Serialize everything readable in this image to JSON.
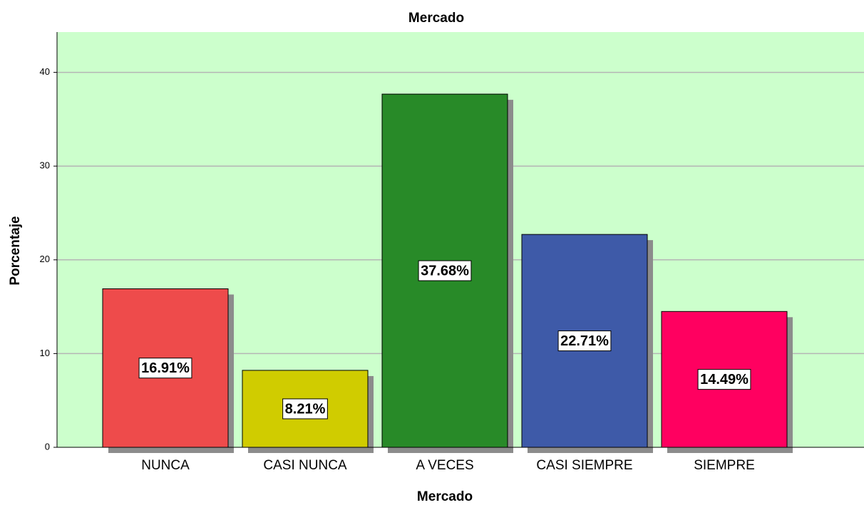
{
  "chart_data": {
    "type": "bar",
    "title": "Mercado",
    "x_label": "Mercado",
    "y_label": "Porcentaje",
    "categories": [
      "NUNCA",
      "CASI NUNCA",
      "A VECES",
      "CASI SIEMPRE",
      "SIEMPRE"
    ],
    "values": [
      16.91,
      8.21,
      37.68,
      22.71,
      14.49
    ],
    "value_labels": [
      "16.91%",
      "8.21%",
      "37.68%",
      "22.71%",
      "14.49%"
    ],
    "colors": [
      "#ee4b4b",
      "#d0cc00",
      "#288a28",
      "#3e5aa8",
      "#ff0060"
    ],
    "ylim": [
      0,
      44.3
    ],
    "yticks": [
      0,
      10,
      20,
      30,
      40
    ],
    "grid": true
  }
}
